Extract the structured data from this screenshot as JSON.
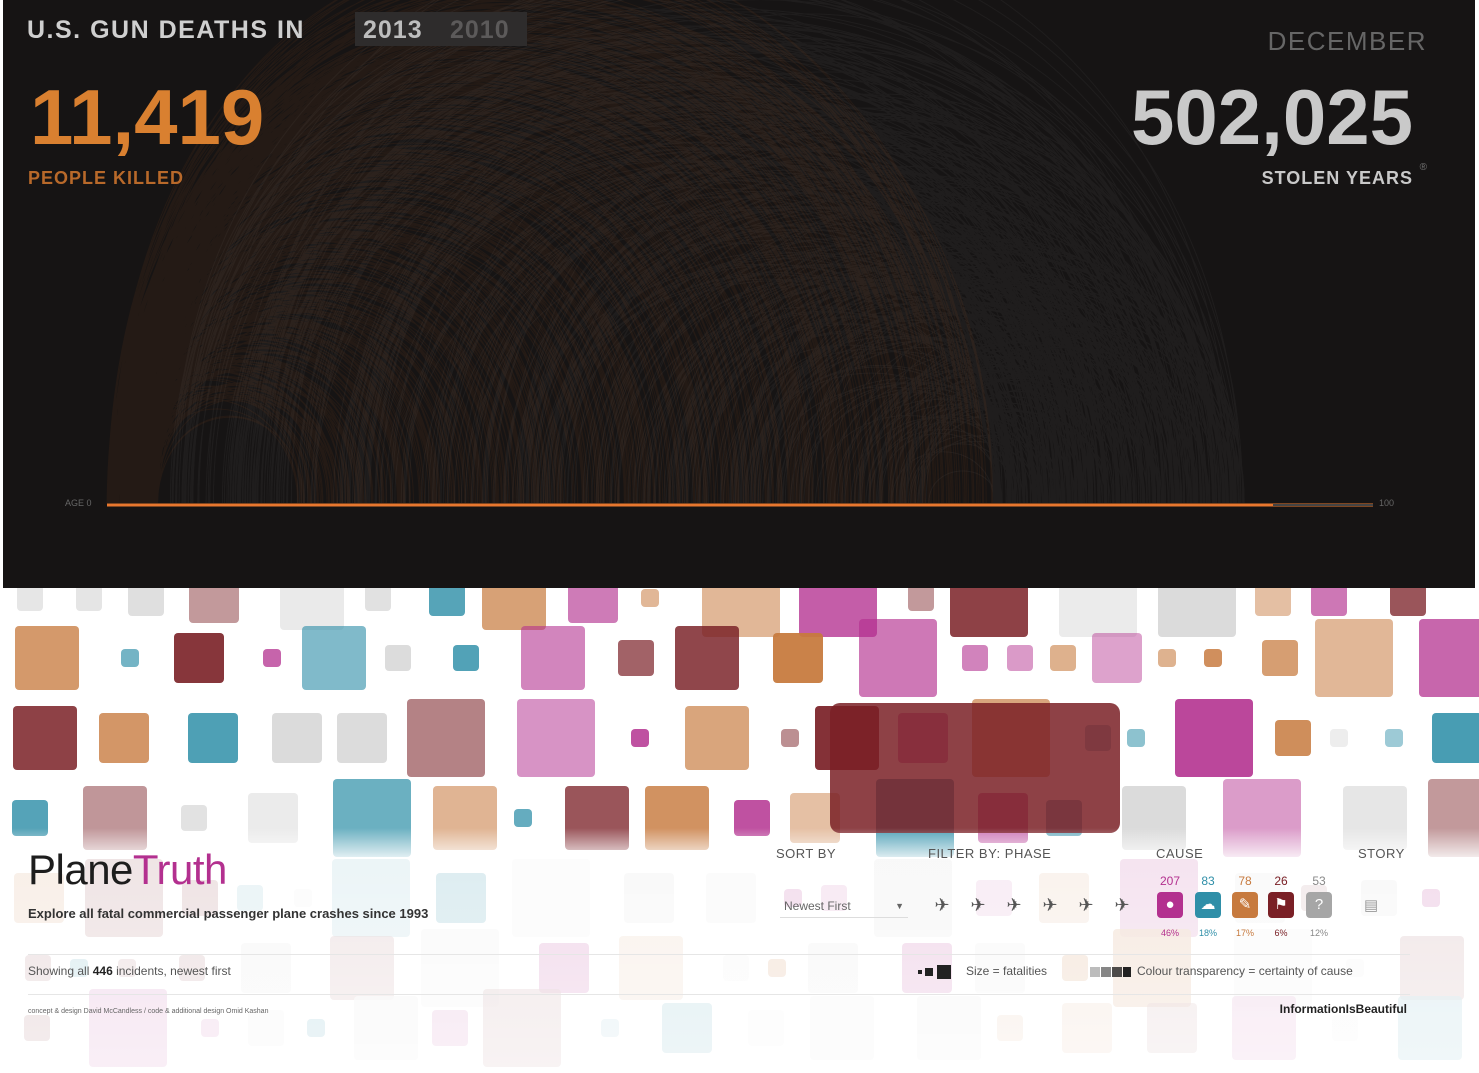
{
  "gun_deaths": {
    "title": "U.S. GUN DEATHS IN",
    "years": [
      "2013",
      "2010"
    ],
    "active_year": "2013",
    "month": "DECEMBER",
    "people_killed": "11,419",
    "people_killed_label": "PEOPLE KILLED",
    "stolen_years": "502,025",
    "stolen_years_label": "STOLEN YEARS",
    "info_mark": "®",
    "age_start_label": "AGE 0",
    "age_end_label": "100",
    "colors": {
      "background": "#161414",
      "killed": "#e8772e",
      "potential": "#d6d6d6",
      "accent_text": "#d98030"
    }
  },
  "plane_truth": {
    "logo_plane": "Plane",
    "logo_truth": "Truth",
    "tagline": "Explore all fatal commercial passenger plane crashes since 1993",
    "sort_header": "SORT BY",
    "sort_value": "Newest First",
    "phase_header": "FILTER BY: PHASE",
    "phase_icons": [
      "taxi-icon",
      "takeoff-icon",
      "climb-icon",
      "cruise-icon",
      "descent-icon",
      "landing-icon"
    ],
    "cause_header": "CAUSE",
    "story_header": "STORY",
    "causes": [
      {
        "name": "human",
        "icon": "person-icon",
        "count": "207",
        "pct": "46%",
        "color": "#b3308f"
      },
      {
        "name": "weather",
        "icon": "cloud-icon",
        "count": "83",
        "pct": "18%",
        "color": "#2f8fa8"
      },
      {
        "name": "mechanical",
        "icon": "wrench-icon",
        "count": "78",
        "pct": "17%",
        "color": "#c77a3e"
      },
      {
        "name": "criminal",
        "icon": "flag-icon",
        "count": "26",
        "pct": "6%",
        "color": "#7a2026"
      },
      {
        "name": "unknown",
        "icon": "question-icon",
        "count": "53",
        "pct": "12%",
        "color": "#a6a6a6"
      }
    ],
    "showing_prefix": "Showing all",
    "showing_count": "446",
    "showing_suffix": "incidents, newest first",
    "legend_size": "Size = fatalities",
    "legend_transparency": "Colour transparency = certainty of cause",
    "credits": "concept & design David McCandless / code & additional design Omid Kashan",
    "brand": "InformationIsBeautiful"
  },
  "chart_data": {
    "type": "arc",
    "title": "U.S. GUN DEATHS IN 2013",
    "xlabel": "",
    "ylabel": "",
    "x_range": [
      0,
      100
    ],
    "x_tick_labels": [
      "AGE 0",
      "100"
    ],
    "series": [
      {
        "name": "PEOPLE KILLED",
        "value": 11419
      },
      {
        "name": "STOLEN YEARS",
        "value": 502025
      }
    ]
  }
}
